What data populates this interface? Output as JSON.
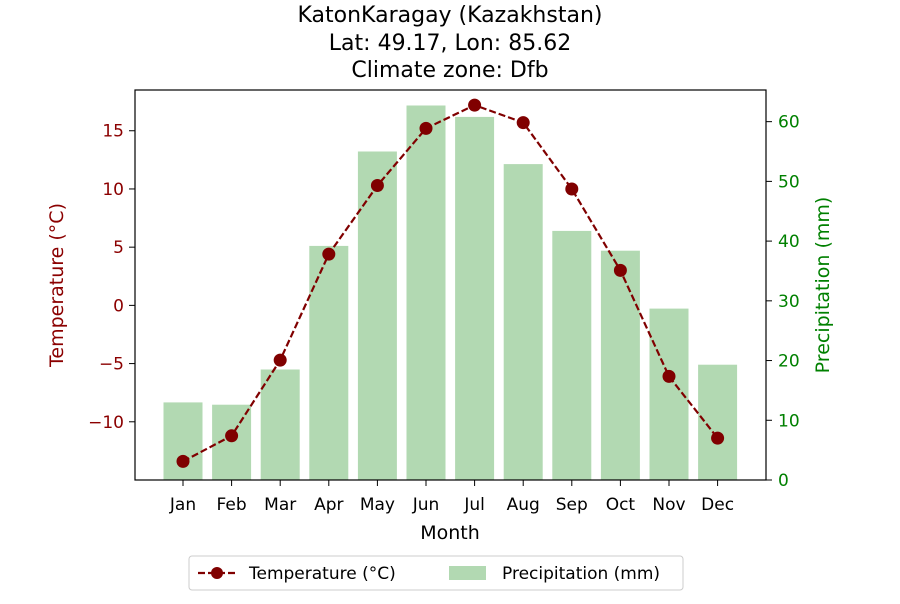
{
  "chart_data": {
    "type": "bar",
    "title_lines": [
      "KatonKaragay (Kazakhstan)",
      "Lat: 49.17, Lon: 85.62",
      "Climate zone: Dfb"
    ],
    "xlabel": "Month",
    "categories": [
      "Jan",
      "Feb",
      "Mar",
      "Apr",
      "May",
      "Jun",
      "Jul",
      "Aug",
      "Sep",
      "Oct",
      "Nov",
      "Dec"
    ],
    "y_left": {
      "label": "Temperature (°C)",
      "ticks": [
        -10,
        -5,
        0,
        5,
        10,
        15
      ],
      "tick_labels": [
        "−10",
        "−5",
        "0",
        "5",
        "10",
        "15"
      ],
      "ylim": [
        -15,
        18.5
      ],
      "color": "#8b0000"
    },
    "y_right": {
      "label": "Precipitation (mm)",
      "ticks": [
        0,
        10,
        20,
        30,
        40,
        50,
        60
      ],
      "tick_labels": [
        "0",
        "10",
        "20",
        "30",
        "40",
        "50",
        "60"
      ],
      "ylim": [
        0,
        65.3
      ],
      "color": "#008000"
    },
    "series": [
      {
        "name": "Temperature (°C)",
        "type": "line",
        "axis": "left",
        "color": "#800000",
        "line_style": "dashed",
        "marker": "circle",
        "values": [
          -13.4,
          -11.2,
          -4.7,
          4.4,
          10.3,
          15.2,
          17.2,
          15.7,
          10.0,
          3.0,
          -6.1,
          -11.4
        ]
      },
      {
        "name": "Precipitation (mm)",
        "type": "bar",
        "axis": "right",
        "color": "#b2d9b2",
        "values": [
          13.0,
          12.6,
          18.5,
          39.2,
          55.0,
          62.7,
          60.8,
          52.9,
          41.7,
          38.4,
          28.7,
          19.3
        ]
      }
    ],
    "legend": {
      "placement": "bottom-center",
      "entries": [
        "Temperature (°C)",
        "Precipitation (mm)"
      ]
    },
    "grid": false
  }
}
